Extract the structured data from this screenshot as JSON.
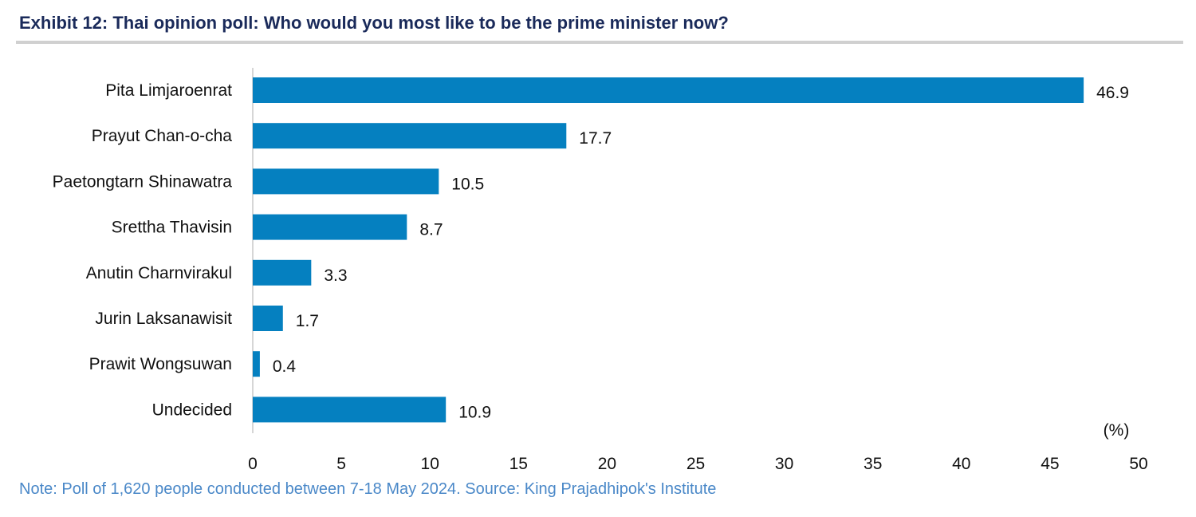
{
  "header": {
    "title": "Exhibit 12: Thai opinion poll: Who would you most like to be the prime minister now?"
  },
  "footer": {
    "note": "Note: Poll of 1,620 people conducted between 7-18 May 2024. Source: King Prajadhipok's Institute"
  },
  "colors": {
    "bar": "#0580c0",
    "title": "#1a2a5a",
    "note": "#4a88c8",
    "axis": "#c8c8c8",
    "text": "#111111"
  },
  "chart_data": {
    "type": "bar",
    "orientation": "horizontal",
    "title": "Exhibit 12: Thai opinion poll: Who would you most like to be the prime minister now?",
    "xlabel": "(%)",
    "ylabel": "",
    "categories": [
      "Pita Limjaroenrat",
      "Prayut Chan-o-cha",
      "Paetongtarn Shinawatra",
      "Srettha Thavisin",
      "Anutin Charnvirakul",
      "Jurin Laksanawisit",
      "Prawit Wongsuwan",
      "Undecided"
    ],
    "values": [
      46.9,
      17.7,
      10.5,
      8.7,
      3.3,
      1.7,
      0.4,
      10.9
    ],
    "value_labels": [
      "46.9",
      "17.7",
      "10.5",
      "8.7",
      "3.3",
      "1.7",
      "0.4",
      "10.9"
    ],
    "xlim": [
      0,
      50
    ],
    "xticks": [
      0,
      5,
      10,
      15,
      20,
      25,
      30,
      35,
      40,
      45,
      50
    ],
    "grid": false,
    "legend": "none"
  }
}
